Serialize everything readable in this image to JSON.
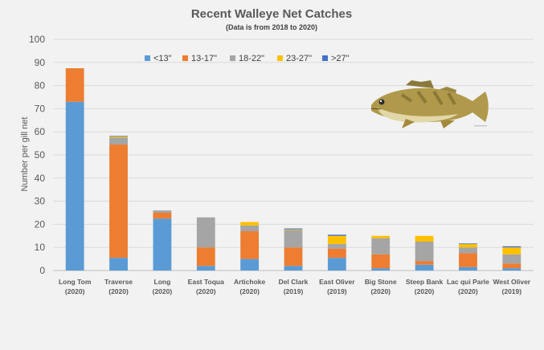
{
  "chart_data": {
    "type": "bar",
    "stacked": true,
    "title": "Recent Walleye Net Catches",
    "subtitle": "(Data is from 2018 to 2020)",
    "xlabel": "",
    "ylabel": "Number per gill net",
    "ylim": [
      0,
      100
    ],
    "yticks": [
      0,
      10,
      20,
      30,
      40,
      50,
      60,
      70,
      80,
      90,
      100
    ],
    "grid": true,
    "legend_position": "top",
    "categories": [
      {
        "name": "Long Tom",
        "year": "(2020)"
      },
      {
        "name": "Traverse",
        "year": "(2020)"
      },
      {
        "name": "Long",
        "year": "(2020)"
      },
      {
        "name": "East Toqua",
        "year": "(2020)"
      },
      {
        "name": "Artichoke",
        "year": "(2020)"
      },
      {
        "name": "Del Clark",
        "year": "(2019)"
      },
      {
        "name": "East Oliver",
        "year": "(2019)"
      },
      {
        "name": "Big Stone",
        "year": "(2020)"
      },
      {
        "name": "Steep Bank",
        "year": "(2020)"
      },
      {
        "name": "Lac qui Parle",
        "year": "(2020)"
      },
      {
        "name": "West Oliver",
        "year": "(2019)"
      }
    ],
    "series": [
      {
        "name": "<13\"",
        "color": "#5b9bd5",
        "values": [
          73,
          5.5,
          22.5,
          2,
          5,
          2,
          5.5,
          1,
          2.5,
          1.5,
          1
        ]
      },
      {
        "name": "13-17\"",
        "color": "#ed7d31",
        "values": [
          14.5,
          49,
          2.5,
          8,
          12,
          8,
          4,
          6,
          1.5,
          6,
          2
        ]
      },
      {
        "name": "18-22\"",
        "color": "#a5a5a5",
        "values": [
          0,
          3,
          1,
          13,
          2.5,
          7.5,
          2,
          7,
          8.5,
          2.5,
          4
        ]
      },
      {
        "name": "23-27\"",
        "color": "#ffc000",
        "values": [
          0,
          0.5,
          0,
          0,
          1.5,
          0.3,
          3.5,
          1,
          2.5,
          1.5,
          3
        ]
      },
      {
        "name": ">27\"",
        "color": "#4472c4",
        "values": [
          0,
          0.2,
          0,
          0,
          0,
          0.4,
          0.5,
          0,
          0,
          0.2,
          0.5
        ]
      }
    ]
  },
  "images": {
    "fish": "walleye-fish-image"
  }
}
